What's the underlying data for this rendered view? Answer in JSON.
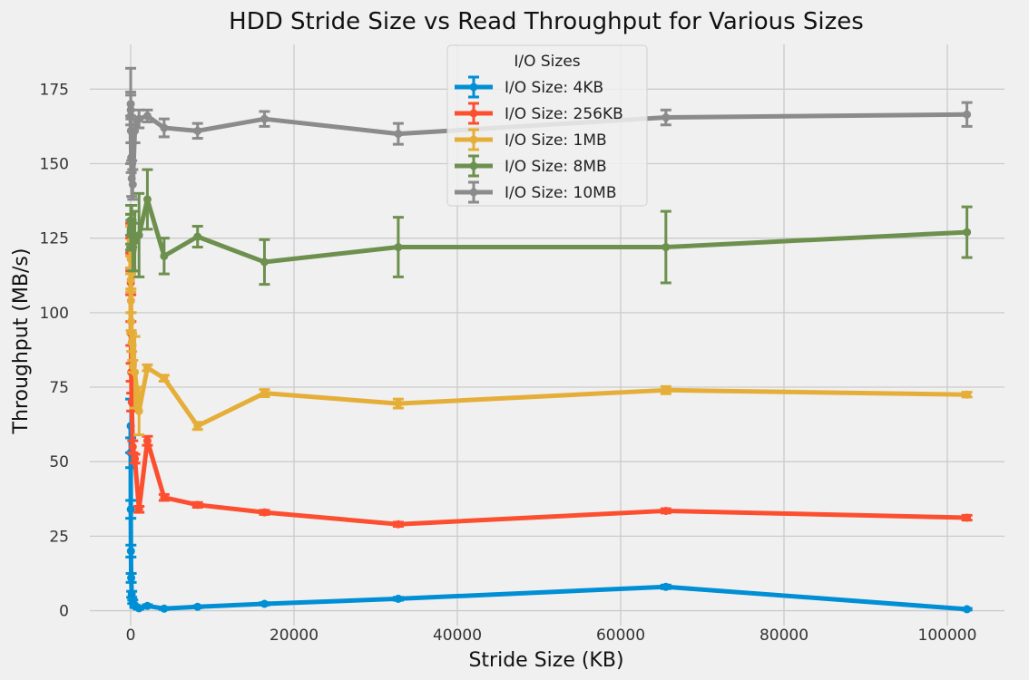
{
  "chart_data": {
    "type": "line",
    "title": "HDD Stride Size vs Read Throughput for Various Sizes",
    "xlabel": "Stride Size (KB)",
    "ylabel": "Throughput (MB/s)",
    "xlim": [
      -5000,
      107000
    ],
    "ylim": [
      -5,
      190
    ],
    "xticks": [
      0,
      20000,
      40000,
      60000,
      80000,
      100000
    ],
    "yticks": [
      0,
      25,
      50,
      75,
      100,
      125,
      150,
      175
    ],
    "grid": true,
    "legend": {
      "title": "I/O Sizes",
      "placement": "top-center"
    },
    "x": [
      4,
      8,
      16,
      32,
      64,
      128,
      256,
      512,
      1024,
      2048,
      4096,
      8192,
      16384,
      32768,
      65536,
      102400
    ],
    "series": [
      {
        "name": "I/O Size: 4KB",
        "color": "#008fd5",
        "values": [
          62,
          53,
          34,
          20,
          11,
          5.5,
          3,
          1.5,
          0.8,
          1.6,
          0.7,
          1.3,
          2.3,
          4,
          8,
          0.5
        ],
        "errors": [
          9,
          5,
          3,
          2,
          1.5,
          1,
          0.6,
          0.4,
          0.3,
          0.4,
          0.3,
          0.3,
          0.4,
          0.5,
          0.6,
          0.3
        ]
      },
      {
        "name": "I/O Size: 256KB",
        "color": "#fc4f30",
        "values": [
          125,
          120,
          110,
          93,
          80,
          70,
          55,
          51,
          34,
          57,
          38,
          35.5,
          33,
          29,
          33.5,
          31.2
        ],
        "errors": [
          5,
          5,
          4,
          4,
          3,
          3,
          2,
          1.5,
          1,
          1.5,
          1,
          0.8,
          0.7,
          0.7,
          0.7,
          0.8
        ]
      },
      {
        "name": "I/O Size: 1MB",
        "color": "#e5ae38",
        "values": [
          124,
          118,
          111,
          104,
          97,
          90,
          82,
          80,
          67,
          81.5,
          78,
          62,
          73,
          69.5,
          74,
          72.5
        ],
        "errors": [
          5,
          5,
          4,
          4,
          3,
          3,
          2,
          12,
          8,
          1,
          1,
          1.2,
          1.2,
          1.5,
          1.2,
          0.8
        ]
      },
      {
        "name": "I/O Size: 8MB",
        "color": "#6d904f",
        "values": [
          131,
          127,
          128,
          126,
          126,
          129,
          122,
          124,
          126,
          138,
          119,
          125.5,
          117,
          122,
          122,
          127
        ],
        "errors": [
          5,
          6,
          5,
          5,
          5,
          7,
          8,
          10,
          14,
          10,
          6,
          3.5,
          7.5,
          10,
          12,
          8.5
        ]
      },
      {
        "name": "I/O Size: 10MB",
        "color": "#8b8b8b",
        "values": [
          166,
          170,
          168,
          161,
          152,
          145,
          143,
          161,
          165,
          166,
          162,
          161,
          165,
          160,
          165.5,
          166.5
        ],
        "errors": [
          16,
          4,
          5,
          4,
          5,
          6,
          5,
          4,
          3,
          2,
          3,
          2.5,
          2.5,
          3.5,
          2.5,
          4
        ]
      }
    ]
  }
}
